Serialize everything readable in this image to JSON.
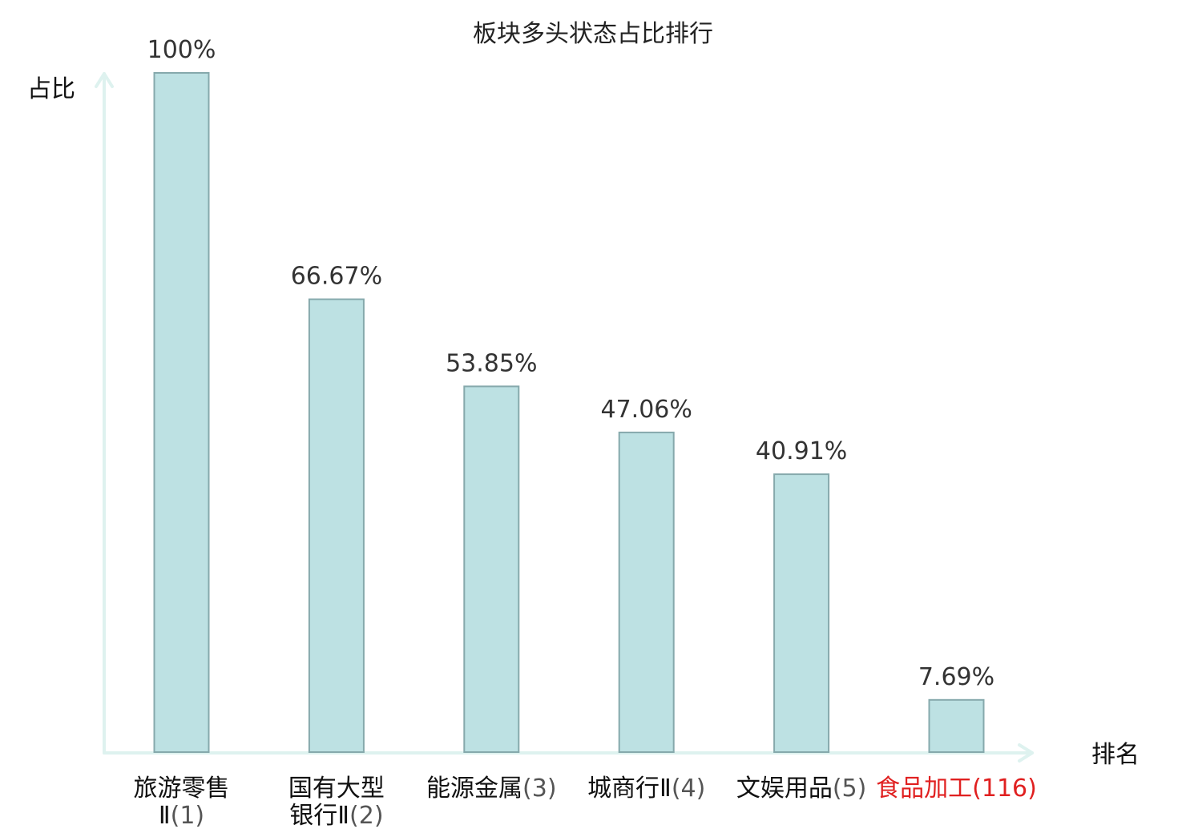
{
  "chart_data": {
    "type": "bar",
    "title": "板块多头状态占比排行",
    "ylabel": "占比",
    "xlabel": "排名",
    "ylim": [
      0,
      100
    ],
    "grid": false,
    "categories": [
      {
        "lines": [
          {
            "name": "旅游零售",
            "rank": ""
          },
          {
            "name": "Ⅱ",
            "rank": "(1)"
          }
        ],
        "highlight": false
      },
      {
        "lines": [
          {
            "name": "国有大型",
            "rank": ""
          },
          {
            "name": "银行Ⅱ",
            "rank": "(2)"
          }
        ],
        "highlight": false
      },
      {
        "lines": [
          {
            "name": "能源金属",
            "rank": "(3)"
          }
        ],
        "highlight": false
      },
      {
        "lines": [
          {
            "name": "城商行Ⅱ",
            "rank": "(4)"
          }
        ],
        "highlight": false
      },
      {
        "lines": [
          {
            "name": "文娱用品",
            "rank": "(5)"
          }
        ],
        "highlight": false
      },
      {
        "lines": [
          {
            "name": "食品加工",
            "rank": "(116)"
          }
        ],
        "highlight": true
      }
    ],
    "values": [
      100,
      66.67,
      53.85,
      47.06,
      40.91,
      7.69
    ],
    "value_labels": [
      "100%",
      "66.67%",
      "53.85%",
      "47.06%",
      "40.91%",
      "7.69%"
    ]
  },
  "colors": {
    "bar_fill": "#bde1e3",
    "bar_stroke": "#86a9ac",
    "axis": "#def2ef",
    "text": "#111111",
    "value_text": "#333333",
    "rank_text": "#555555",
    "highlight": "#e02020"
  }
}
